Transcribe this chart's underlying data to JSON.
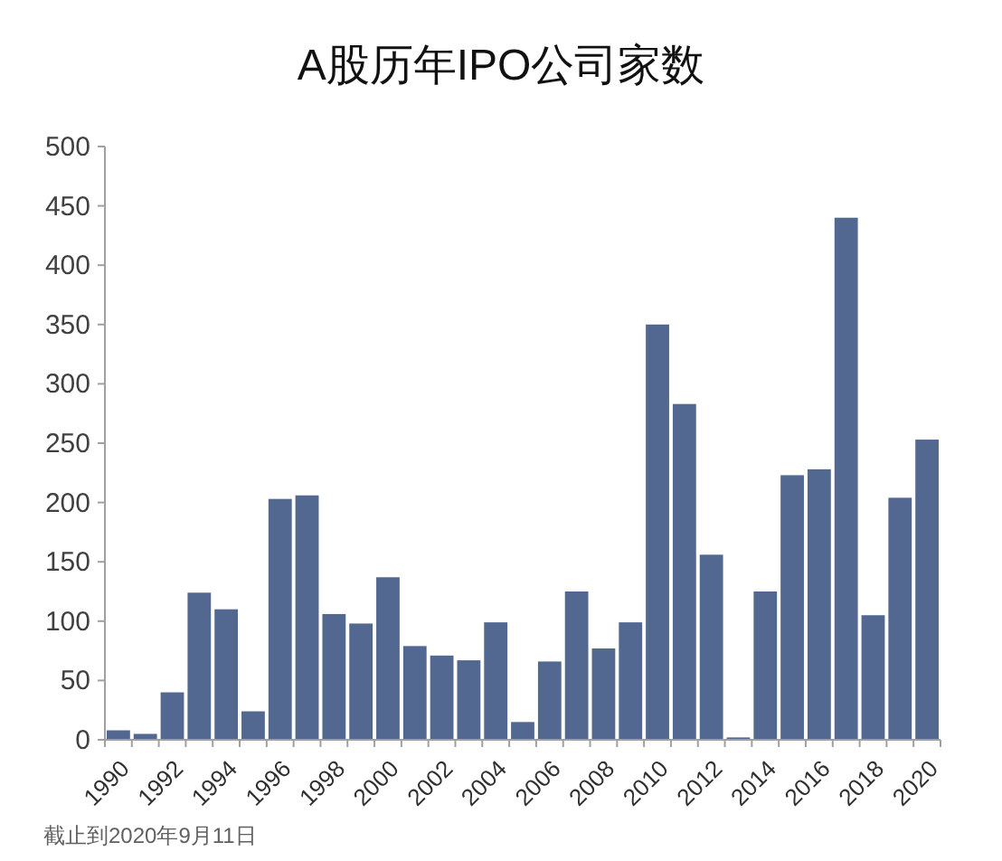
{
  "chart_data": {
    "type": "bar",
    "title": "A股历年IPO公司家数",
    "categories": [
      "1990",
      null,
      "1992",
      null,
      "1994",
      null,
      "1996",
      null,
      "1998",
      null,
      "2000",
      null,
      "2002",
      null,
      "2004",
      null,
      "2006",
      null,
      "2008",
      null,
      "2010",
      null,
      "2012",
      null,
      "2014",
      null,
      "2016",
      null,
      "2018",
      null,
      "2020"
    ],
    "values": [
      8,
      5,
      40,
      124,
      110,
      24,
      203,
      206,
      106,
      98,
      137,
      79,
      71,
      67,
      99,
      15,
      66,
      125,
      77,
      99,
      350,
      283,
      156,
      2,
      125,
      223,
      228,
      440,
      105,
      204,
      253
    ],
    "color": "#536891",
    "ylim": [
      0,
      500
    ],
    "yticks": [
      0,
      50,
      100,
      150,
      200,
      250,
      300,
      350,
      400,
      450,
      500
    ],
    "annotations": [
      "截止到2020年9月11日"
    ]
  }
}
